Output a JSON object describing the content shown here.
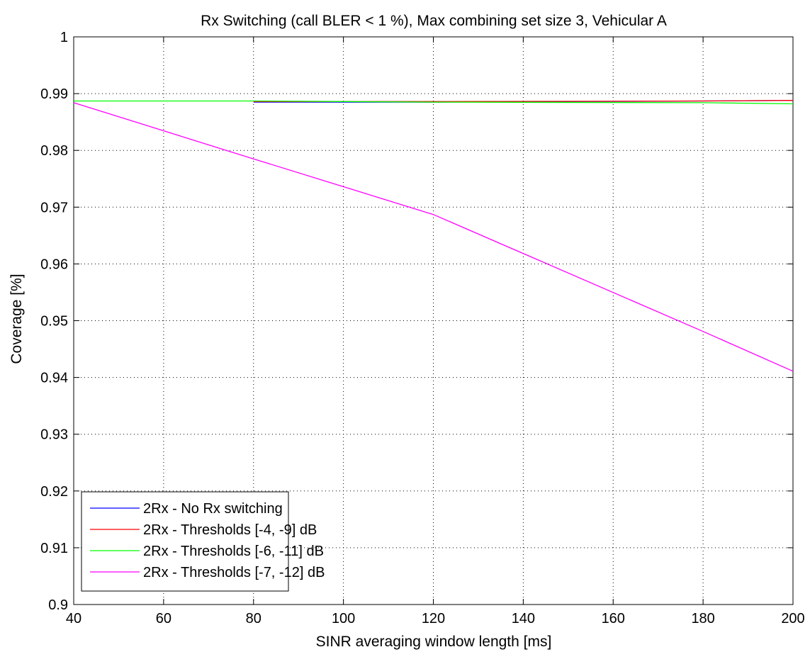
{
  "chart_data": {
    "type": "line",
    "title": "Rx Switching (call BLER < 1 %), Max combining set size 3, Vehicular A",
    "xlabel": "SINR averaging window length [ms]",
    "ylabel": "Coverage [%]",
    "xlim": [
      40,
      200
    ],
    "ylim": [
      0.9,
      1
    ],
    "xticks": [
      40,
      60,
      80,
      100,
      120,
      140,
      160,
      180,
      200
    ],
    "xtick_labels": [
      "40",
      "60",
      "80",
      "100",
      "120",
      "140",
      "160",
      "180",
      "200"
    ],
    "yticks": [
      0.9,
      0.91,
      0.92,
      0.93,
      0.94,
      0.95,
      0.96,
      0.97,
      0.98,
      0.99,
      1
    ],
    "ytick_labels": [
      "0.9",
      "0.91",
      "0.92",
      "0.93",
      "0.94",
      "0.95",
      "0.96",
      "0.97",
      "0.98",
      "0.99",
      "1"
    ],
    "grid": true,
    "legend_position": "bottom-left",
    "series": [
      {
        "name": "2Rx - No Rx switching",
        "color": "#0000ff",
        "x": [
          80,
          120,
          180,
          200
        ],
        "y": [
          0.9885,
          0.9885,
          0.9887,
          0.9888
        ]
      },
      {
        "name": "2Rx - Thresholds [-4, -9] dB",
        "color": "#ff0000",
        "x": [
          80,
          120,
          180,
          200
        ],
        "y": [
          0.9886,
          0.9886,
          0.9887,
          0.9888
        ]
      },
      {
        "name": "2Rx - Thresholds [-6, -11] dB",
        "color": "#00ff00",
        "x": [
          40,
          80,
          120,
          180,
          200
        ],
        "y": [
          0.9887,
          0.9887,
          0.9885,
          0.9884,
          0.9882
        ]
      },
      {
        "name": "2Rx - Thresholds [-7, -12] dB",
        "color": "#ff00ff",
        "x": [
          40,
          80,
          120,
          180,
          200
        ],
        "y": [
          0.9884,
          0.9785,
          0.9687,
          0.9481,
          0.9411
        ]
      }
    ]
  }
}
